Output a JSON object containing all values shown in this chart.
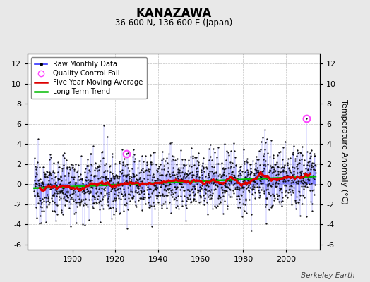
{
  "title": "KANAZAWA",
  "subtitle": "36.600 N, 136.600 E (Japan)",
  "ylabel": "Temperature Anomaly (°C)",
  "watermark": "Berkeley Earth",
  "year_start": 1882,
  "year_end": 2013,
  "ylim": [
    -6.5,
    13.0
  ],
  "yticks": [
    -6,
    -4,
    -2,
    0,
    2,
    4,
    6,
    8,
    10,
    12
  ],
  "xlim": [
    1879,
    2016
  ],
  "xticks": [
    1900,
    1920,
    1940,
    1960,
    1980,
    2000
  ],
  "bg_color": "#e8e8e8",
  "plot_bg_color": "#ffffff",
  "line_color": "#3333ff",
  "dot_color": "#000000",
  "ma_color": "#dd0000",
  "trend_color": "#00bb00",
  "qc_color": "#ff44ff",
  "seed": 12345
}
